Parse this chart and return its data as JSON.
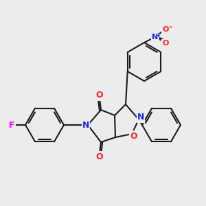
{
  "background_color": "#ececec",
  "bond_color": "#1a1a1a",
  "bond_width": 1.5,
  "atom_colors": {
    "N": "#2020ff",
    "O": "#ff2020",
    "F": "#ff00ff",
    "C": "#1a1a1a"
  },
  "figsize": [
    3.0,
    3.0
  ],
  "dpi": 100
}
